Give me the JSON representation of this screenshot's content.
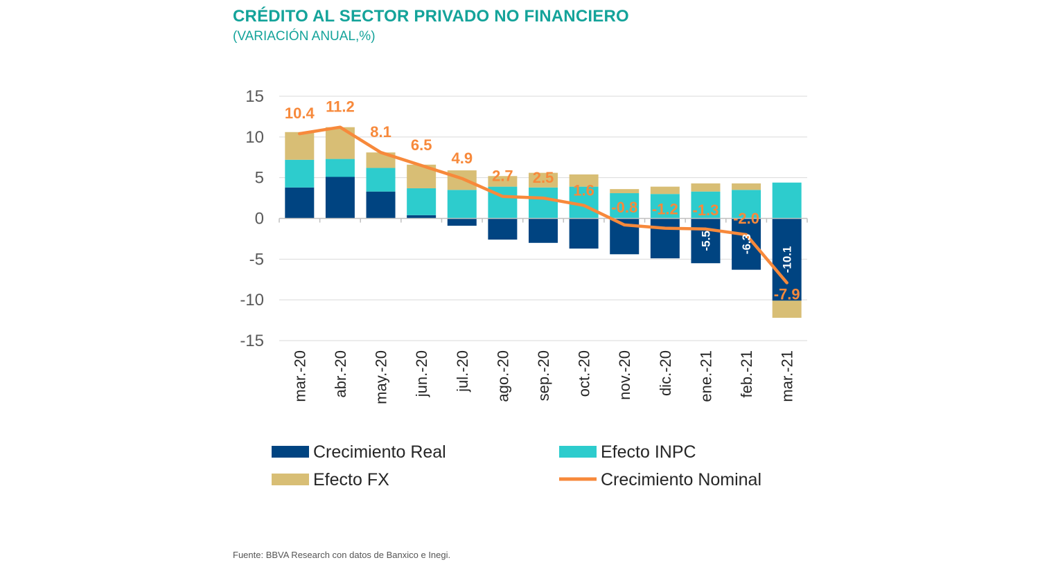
{
  "title": "CRÉDITO AL SECTOR PRIVADO NO FINANCIERO",
  "subtitle": "(VARIACIÓN ANUAL,%)",
  "source": "Fuente: BBVA Research con datos de Banxico e Inegi.",
  "colors": {
    "real": "#004481",
    "inpc": "#2dcccd",
    "fx": "#d8be75",
    "nominal": "#f7893b",
    "title": "#14a39a",
    "grid": "#d9d9d9",
    "axis_text": "#595959"
  },
  "chart_data": {
    "type": "bar",
    "stacked": true,
    "title": "CRÉDITO AL SECTOR PRIVADO NO FINANCIERO",
    "subtitle": "(VARIACIÓN ANUAL,%)",
    "categories": [
      "mar.-20",
      "abr.-20",
      "may.-20",
      "jun.-20",
      "jul.-20",
      "ago.-20",
      "sep.-20",
      "oct.-20",
      "nov.-20",
      "dic.-20",
      "ene.-21",
      "feb.-21",
      "mar.-21"
    ],
    "ylim": [
      -15,
      15
    ],
    "yticks": [
      "15",
      "10",
      "5",
      "0",
      "-5",
      "-10",
      "-15"
    ],
    "series": [
      {
        "name": "Crecimiento Real",
        "type": "bar",
        "values": [
          3.8,
          5.1,
          3.3,
          0.4,
          -0.9,
          -2.6,
          -3.0,
          -3.7,
          -4.4,
          -4.9,
          -5.5,
          -6.3,
          -10.1
        ]
      },
      {
        "name": "Efecto INPC",
        "type": "bar",
        "values": [
          3.4,
          2.2,
          2.9,
          3.3,
          3.5,
          3.9,
          3.8,
          3.9,
          3.1,
          3.0,
          3.3,
          3.5,
          4.4
        ]
      },
      {
        "name": "Efecto FX",
        "type": "bar",
        "values": [
          3.4,
          3.9,
          1.9,
          2.9,
          2.4,
          1.3,
          1.8,
          1.5,
          0.5,
          0.9,
          1.0,
          0.8,
          -2.1
        ]
      },
      {
        "name": "Crecimiento Nominal",
        "type": "line",
        "values": [
          10.4,
          11.2,
          8.1,
          6.5,
          4.9,
          2.7,
          2.5,
          1.6,
          -0.8,
          -1.2,
          -1.3,
          -2.0,
          -7.9
        ]
      }
    ],
    "nominal_labels": [
      "10.4",
      "11.2",
      "8.1",
      "6.5",
      "4.9",
      "2.7",
      "2.5",
      "1.6",
      "-0.8",
      "-1.2",
      "-1.3",
      "-2.0",
      "-7.9"
    ],
    "real_labels": [
      {
        "index": 10,
        "text": "-5.5"
      },
      {
        "index": 11,
        "text": "-6.3"
      },
      {
        "index": 12,
        "text": "-10.1"
      }
    ],
    "legend": [
      "Crecimiento Real",
      "Efecto INPC",
      "Efecto FX",
      "Crecimiento Nominal"
    ],
    "legend_position": "bottom",
    "grid": true
  }
}
